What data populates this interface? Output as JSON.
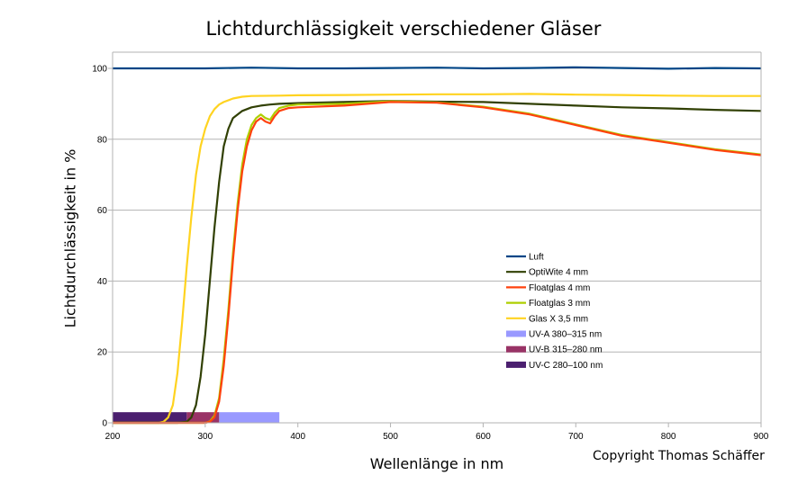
{
  "chart_data": {
    "type": "line",
    "title": "Lichtdurchlässigkeit verschiedener Gläser",
    "xlabel": "Wellenlänge in nm",
    "ylabel": "Lichtdurchlässigkeit in %",
    "xlim": [
      200,
      900
    ],
    "ylim": [
      0,
      100
    ],
    "x_ticks": [
      200,
      300,
      400,
      500,
      600,
      700,
      800,
      900
    ],
    "y_ticks": [
      0,
      20,
      40,
      60,
      80,
      100
    ],
    "grid": "horizontal",
    "legend_position": "inside-right",
    "series": [
      {
        "name": "Luft",
        "color": "#004586",
        "x": [
          200,
          250,
          300,
          350,
          400,
          450,
          500,
          550,
          600,
          650,
          700,
          750,
          800,
          850,
          900
        ],
        "values": [
          100,
          100,
          100,
          100.2,
          100,
          100,
          100.1,
          100.2,
          100,
          100.1,
          100.3,
          100.1,
          99.9,
          100.1,
          100
        ]
      },
      {
        "name": "OptiWite 4 mm",
        "color": "#314004",
        "x": [
          200,
          270,
          280,
          285,
          290,
          295,
          300,
          305,
          310,
          315,
          320,
          325,
          330,
          340,
          350,
          360,
          370,
          380,
          400,
          450,
          500,
          550,
          600,
          650,
          700,
          750,
          800,
          850,
          900
        ],
        "values": [
          0,
          0,
          0.3,
          1.5,
          5,
          13,
          25,
          40,
          55,
          68,
          78,
          83,
          86,
          88,
          89,
          89.5,
          89.8,
          90,
          90.2,
          90.5,
          90.8,
          90.6,
          90.5,
          90,
          89.5,
          89,
          88.7,
          88.3,
          88
        ]
      },
      {
        "name": "Floatglas 4 mm",
        "color": "#ff420e",
        "x": [
          200,
          300,
          305,
          310,
          315,
          320,
          325,
          330,
          335,
          340,
          345,
          350,
          355,
          360,
          365,
          370,
          375,
          380,
          390,
          400,
          450,
          500,
          550,
          600,
          650,
          700,
          750,
          800,
          850,
          900
        ],
        "values": [
          0,
          0,
          0.3,
          1.5,
          6,
          16,
          30,
          46,
          60,
          71,
          78,
          82.5,
          85,
          86,
          85,
          84.5,
          86.5,
          88,
          88.8,
          89,
          89.5,
          90.5,
          90.3,
          89,
          87,
          84,
          81,
          79,
          77,
          75.5
        ]
      },
      {
        "name": "Floatglas 3 mm",
        "color": "#aecf00",
        "x": [
          200,
          300,
          305,
          310,
          315,
          320,
          325,
          330,
          335,
          340,
          345,
          350,
          355,
          360,
          365,
          370,
          375,
          380,
          390,
          400,
          450,
          500,
          550,
          600,
          650,
          700,
          750,
          800,
          850,
          900
        ],
        "values": [
          0,
          0,
          0.4,
          2,
          7,
          18,
          32,
          48,
          62,
          73,
          80,
          84,
          86,
          87,
          86,
          85.5,
          87.5,
          88.8,
          89.5,
          89.8,
          90,
          90.7,
          90.4,
          89.2,
          87.2,
          84.2,
          81.2,
          79.2,
          77.2,
          75.7
        ]
      },
      {
        "name": "Glas X 3,5 mm",
        "color": "#ffd320",
        "x": [
          200,
          250,
          255,
          260,
          265,
          270,
          275,
          280,
          285,
          290,
          295,
          300,
          305,
          310,
          315,
          320,
          330,
          340,
          350,
          380,
          400,
          450,
          500,
          550,
          600,
          650,
          700,
          750,
          800,
          850,
          900
        ],
        "values": [
          0,
          0,
          0.3,
          1.5,
          5,
          14,
          28,
          44,
          58,
          70,
          78,
          83,
          86.5,
          88.5,
          89.8,
          90.5,
          91.5,
          92,
          92.2,
          92.3,
          92.4,
          92.5,
          92.6,
          92.7,
          92.7,
          92.8,
          92.6,
          92.5,
          92.3,
          92.2,
          92.2
        ]
      }
    ],
    "bands": [
      {
        "name": "UV-A 380–315 nm",
        "color": "#9999ff",
        "x_start": 315,
        "x_end": 380
      },
      {
        "name": "UV-B 315–280 nm",
        "color": "#993366",
        "x_start": 280,
        "x_end": 315
      },
      {
        "name": "UV-C 280–100 nm",
        "color": "#4b1f6f",
        "x_start": 200,
        "x_end": 280
      }
    ]
  },
  "copyright": "Copyright Thomas Schäffer"
}
